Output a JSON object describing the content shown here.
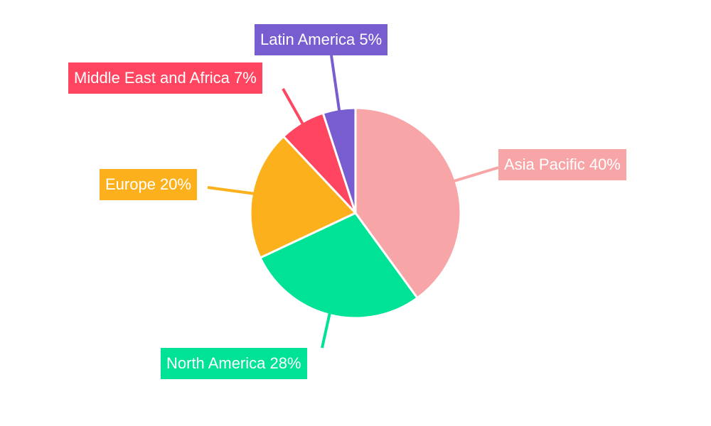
{
  "chart_data": {
    "type": "pie",
    "title": "",
    "start_angle_deg": 0,
    "direction": "clockwise",
    "slices": [
      {
        "label": "Asia Pacific",
        "value": 40,
        "text": "Asia Pacific 40%",
        "color": "#f8a5a7"
      },
      {
        "label": "North America",
        "value": 28,
        "text": "North America 28%",
        "color": "#00e396"
      },
      {
        "label": "Europe",
        "value": 20,
        "text": "Europe 20%",
        "color": "#fcb11c"
      },
      {
        "label": "Middle East and Africa",
        "value": 7,
        "text": "Middle East and Africa 7%",
        "color": "#ff4560"
      },
      {
        "label": "Latin America",
        "value": 5,
        "text": "Latin America 5%",
        "color": "#775dd0"
      }
    ],
    "categories": [
      "Asia Pacific",
      "North America",
      "Europe",
      "Middle East and Africa",
      "Latin America"
    ],
    "values": [
      40,
      28,
      20,
      7,
      5
    ],
    "unit": "%",
    "legend": "none (outside labels with leader lines)"
  }
}
